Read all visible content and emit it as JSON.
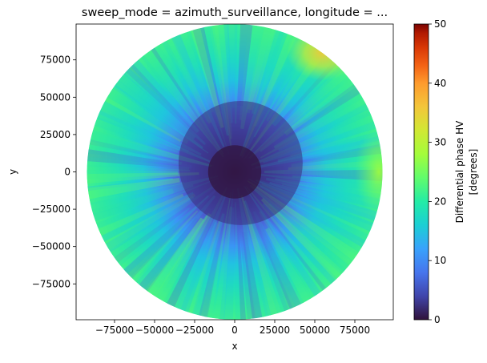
{
  "chart_data": {
    "type": "heatmap",
    "title": "sweep_mode = azimuth_surveillance, longitude = ...",
    "xlabel": "x",
    "ylabel": "y",
    "xlim": [
      -99000,
      99000
    ],
    "ylim": [
      -99000,
      99000
    ],
    "x_ticks": [
      -75000,
      -50000,
      -25000,
      0,
      25000,
      50000,
      75000
    ],
    "x_tick_labels": [
      "−75000",
      "−50000",
      "−25000",
      "0",
      "25000",
      "50000",
      "75000"
    ],
    "y_ticks": [
      75000,
      50000,
      25000,
      0,
      -25000,
      -50000,
      -75000
    ],
    "y_tick_labels": [
      "75000",
      "50000",
      "25000",
      "0",
      "−25000",
      "−50000",
      "−75000"
    ],
    "grid": false,
    "colorbar": {
      "label_line1": "Differential phase HV",
      "label_line2": "[degrees]",
      "min": 0,
      "max": 50,
      "ticks": [
        0,
        10,
        20,
        30,
        40,
        50
      ],
      "tick_labels": [
        "0",
        "10",
        "20",
        "30",
        "40",
        "50"
      ],
      "colormap": "turbo"
    },
    "field_summary": {
      "radar_range_m": 99000,
      "inner_core_value_deg": 4,
      "outer_typical_value_deg": 20,
      "hotspots": [
        {
          "x": 55000,
          "y": 80000,
          "value_deg": 29
        },
        {
          "x": 90000,
          "y": 0,
          "value_deg": 25
        }
      ]
    }
  }
}
